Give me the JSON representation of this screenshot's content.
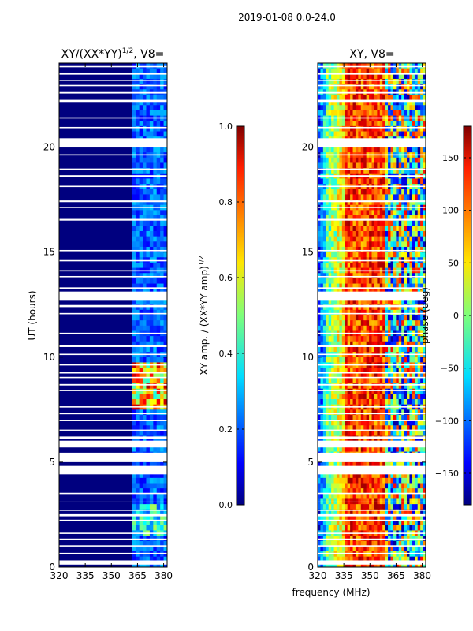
{
  "figure_title": "2019-01-08 0.0-24.0",
  "chart_data": [
    {
      "type": "heatmap",
      "title": "XY/(XX*YY)",
      "title_sup": "1/2",
      "title_suffix": ", V8=",
      "xlabel": "",
      "ylabel": "UT (hours)",
      "xlim": [
        320,
        382
      ],
      "ylim": [
        0,
        24
      ],
      "xticks": [
        320,
        335,
        350,
        365,
        380
      ],
      "yticks": [
        0,
        5,
        10,
        15,
        20
      ],
      "colorbar": {
        "label": "XY amp. / (XX*YY amp)",
        "label_sup": "1/2",
        "range": [
          0.0,
          1.0
        ],
        "ticks": [
          "0.0",
          "0.2",
          "0.4",
          "0.6",
          "0.8",
          "1.0"
        ]
      }
    },
    {
      "type": "heatmap",
      "title": "XY, V8=",
      "xlabel": "frequency (MHz)",
      "ylabel": "",
      "xlim": [
        320,
        382
      ],
      "ylim": [
        0,
        24
      ],
      "xticks": [
        320,
        335,
        350,
        365,
        380
      ],
      "yticks": [
        0,
        5,
        10,
        15,
        20
      ],
      "colorbar": {
        "label": "phase (deg)",
        "range": [
          -180,
          180
        ],
        "ticks": [
          "−150",
          "−100",
          "−50",
          "0",
          "50",
          "100",
          "150"
        ]
      }
    }
  ],
  "flagged_ut_gaps": [
    [
      0.12,
      0.32
    ],
    [
      0.62,
      0.68
    ],
    [
      0.98,
      1.04
    ],
    [
      1.3,
      1.36
    ],
    [
      1.58,
      1.64
    ],
    [
      2.2,
      2.26
    ],
    [
      2.42,
      2.52
    ],
    [
      2.68,
      2.74
    ],
    [
      3.08,
      3.12
    ],
    [
      3.48,
      3.54
    ],
    [
      4.42,
      4.82
    ],
    [
      5.0,
      5.45
    ],
    [
      5.7,
      6.02
    ],
    [
      6.12,
      6.22
    ],
    [
      6.5,
      6.55
    ],
    [
      6.95,
      7.0
    ],
    [
      7.28,
      7.34
    ],
    [
      7.6,
      7.66
    ],
    [
      8.38,
      8.44
    ],
    [
      8.65,
      8.72
    ],
    [
      9.0,
      9.06
    ],
    [
      9.22,
      9.3
    ],
    [
      9.6,
      9.66
    ],
    [
      10.1,
      10.16
    ],
    [
      10.48,
      10.56
    ],
    [
      11.1,
      11.16
    ],
    [
      12.04,
      12.1
    ],
    [
      12.38,
      12.48
    ],
    [
      12.72,
      13.12
    ],
    [
      13.25,
      13.32
    ],
    [
      13.8,
      13.86
    ],
    [
      14.08,
      14.14
    ],
    [
      14.56,
      14.62
    ],
    [
      15.04,
      15.1
    ],
    [
      16.5,
      16.58
    ],
    [
      17.1,
      17.16
    ],
    [
      17.38,
      17.46
    ],
    [
      18.1,
      18.16
    ],
    [
      18.58,
      18.66
    ],
    [
      18.9,
      18.98
    ],
    [
      19.6,
      19.66
    ],
    [
      19.98,
      20.42
    ],
    [
      20.9,
      20.96
    ],
    [
      21.36,
      21.42
    ],
    [
      22.15,
      22.25
    ],
    [
      22.55,
      22.62
    ],
    [
      22.9,
      22.96
    ],
    [
      23.15,
      23.2
    ],
    [
      23.45,
      23.55
    ],
    [
      23.8,
      23.86
    ]
  ]
}
